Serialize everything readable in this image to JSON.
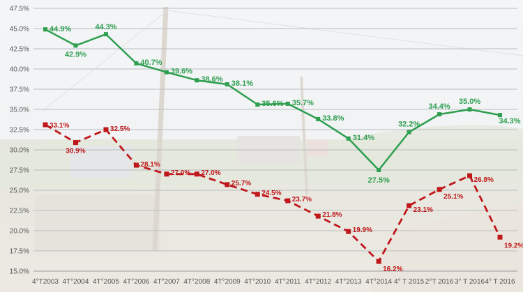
{
  "chart_data": {
    "type": "line",
    "title": "",
    "xlabel": "",
    "ylabel": "",
    "ylim": [
      15.0,
      47.5
    ],
    "grid": true,
    "y_ticks": [
      "15.0%",
      "17.5%",
      "20.0%",
      "22.5%",
      "25.0%",
      "27.5%",
      "30.0%",
      "32.5%",
      "35.0%",
      "37.5%",
      "40.0%",
      "42.5%",
      "45.0%",
      "47.5%"
    ],
    "y_tick_values": [
      15.0,
      17.5,
      20.0,
      22.5,
      25.0,
      27.5,
      30.0,
      32.5,
      35.0,
      37.5,
      40.0,
      42.5,
      45.0,
      47.5
    ],
    "categories": [
      "4°T2003",
      "4T°2004",
      "4T°2005",
      "4T°2006",
      "4T°2007",
      "4T°2008",
      "4T°2009",
      "4T°2010",
      "4T°2011",
      "4T°2012",
      "4T°2013",
      "4T°2014",
      "4° T 2015",
      "2°T 2016",
      "3° T 2016",
      "4° T 2016"
    ],
    "series": [
      {
        "color": "#2e9e4f",
        "style": "solid",
        "values": [
          44.9,
          42.9,
          44.3,
          40.7,
          39.6,
          38.6,
          38.1,
          35.6,
          35.7,
          33.8,
          31.4,
          27.5,
          32.2,
          34.4,
          35.0,
          34.3
        ],
        "labels": [
          "44.9%",
          "42.9%",
          "44.3%",
          "40.7%",
          "39.6%",
          "38.6%",
          "38.1%",
          "35.6%",
          "35.7%",
          "33.8%",
          "31.4%",
          "27.5%",
          "32.2%",
          "34.4%",
          "35.0%",
          "34.3%"
        ]
      },
      {
        "color": "#c0171b",
        "style": "dashed",
        "values": [
          33.1,
          30.9,
          32.5,
          28.1,
          27.0,
          27.0,
          25.7,
          24.5,
          23.7,
          21.8,
          19.9,
          16.2,
          23.1,
          25.1,
          26.8,
          19.2
        ],
        "labels": [
          "33.1%",
          "30.9%",
          "32.5%",
          "28.1%",
          "27.0%",
          "27.0%",
          "25.7%",
          "24.5%",
          "23.7%",
          "21.8%",
          "19.9%",
          "16.2%",
          "23.1%",
          "25.1%",
          "26.8%",
          "19.2%"
        ]
      }
    ]
  }
}
